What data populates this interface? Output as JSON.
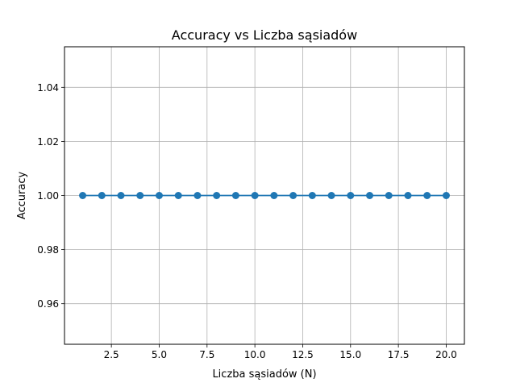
{
  "chart_data": {
    "type": "line",
    "title": "Accuracy vs Liczba sąsiadów",
    "xlabel": "Liczba sąsiadów (N)",
    "ylabel": "Accuracy",
    "xlim": [
      0.05,
      20.95
    ],
    "ylim": [
      0.945,
      1.055
    ],
    "xticks": [
      2.5,
      5.0,
      7.5,
      10.0,
      12.5,
      15.0,
      17.5,
      20.0
    ],
    "xtick_labels": [
      "2.5",
      "5.0",
      "7.5",
      "10.0",
      "12.5",
      "15.0",
      "17.5",
      "20.0"
    ],
    "yticks": [
      0.96,
      0.98,
      1.0,
      1.02,
      1.04
    ],
    "ytick_labels": [
      "0.96",
      "0.98",
      "1.00",
      "1.02",
      "1.04"
    ],
    "grid": true,
    "legend": "none",
    "series": [
      {
        "color": "#1f77b4",
        "marker": "circle",
        "x": [
          1,
          2,
          3,
          4,
          5,
          6,
          7,
          8,
          9,
          10,
          11,
          12,
          13,
          14,
          15,
          16,
          17,
          18,
          19,
          20
        ],
        "y": [
          1.0,
          1.0,
          1.0,
          1.0,
          1.0,
          1.0,
          1.0,
          1.0,
          1.0,
          1.0,
          1.0,
          1.0,
          1.0,
          1.0,
          1.0,
          1.0,
          1.0,
          1.0,
          1.0,
          1.0
        ]
      }
    ]
  }
}
